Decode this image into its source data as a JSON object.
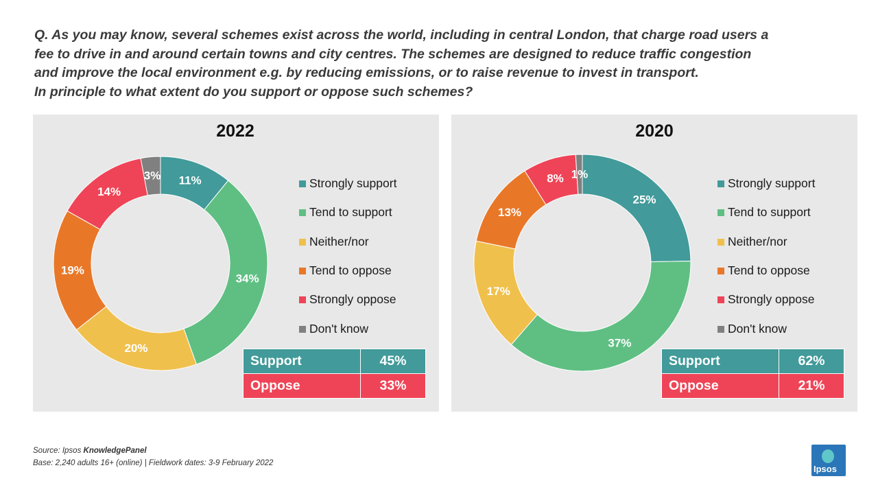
{
  "question": {
    "lines": [
      "Q. As you may know, several schemes exist across the world, including in central London, that charge road users a",
      "fee to drive in and around certain towns and city centres. The schemes are designed to reduce traffic congestion",
      "and improve the local environment e.g. by reducing emissions, or to raise revenue to invest in transport.",
      "In principle to what extent do you support or oppose such schemes?"
    ]
  },
  "colors": {
    "strongly_support": "#429a9a",
    "tend_to_support": "#5fbf83",
    "neither_nor": "#f0c04d",
    "tend_to_oppose": "#e87828",
    "strongly_oppose": "#ef4457",
    "dont_know": "#808080",
    "panel_bg": "#e8e8e8"
  },
  "chart_data": [
    {
      "type": "pie",
      "variant": "donut",
      "title": "2022",
      "categories": [
        "Strongly support",
        "Tend to support",
        "Neither/nor",
        "Tend to oppose",
        "Strongly oppose",
        "Don't know"
      ],
      "values": [
        11,
        34,
        20,
        19,
        14,
        3
      ],
      "labels": [
        "11%",
        "34%",
        "20%",
        "19%",
        "14%",
        "3%"
      ],
      "legend_position": "right",
      "summary": {
        "support_label": "Support",
        "support_value": "45%",
        "oppose_label": "Oppose",
        "oppose_value": "33%"
      }
    },
    {
      "type": "pie",
      "variant": "donut",
      "title": "2020",
      "categories": [
        "Strongly support",
        "Tend to support",
        "Neither/nor",
        "Tend to oppose",
        "Strongly oppose",
        "Don't know"
      ],
      "values": [
        25,
        37,
        17,
        13,
        8,
        1
      ],
      "labels": [
        "25%",
        "37%",
        "17%",
        "13%",
        "8%",
        "1%"
      ],
      "legend_position": "right",
      "summary": {
        "support_label": "Support",
        "support_value": "62%",
        "oppose_label": "Oppose",
        "oppose_value": "21%"
      }
    }
  ],
  "source": {
    "prefix": "Source: Ipsos ",
    "name": "KnowledgePanel",
    "base": "Base: 2,240 adults 16+ (online) | Fieldwork dates: 3-9 February 2022"
  },
  "logo": {
    "text": "Ipsos"
  }
}
